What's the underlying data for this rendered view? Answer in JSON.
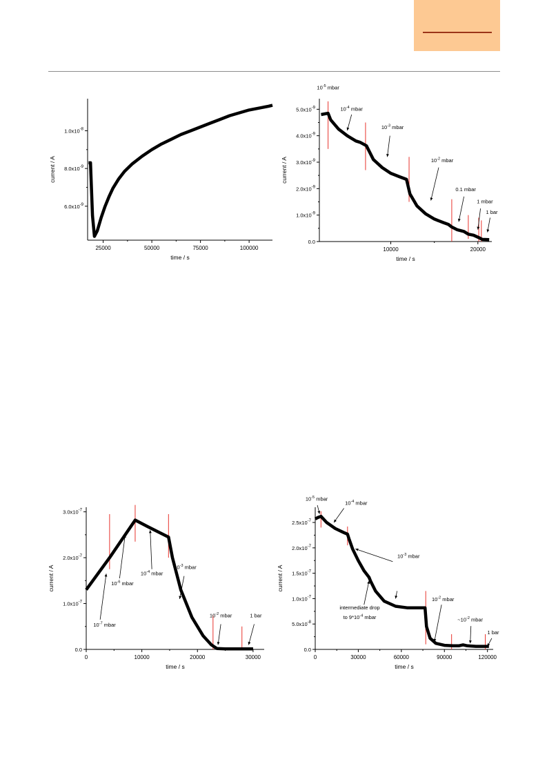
{
  "page": {
    "header_box_color": "#FDC993",
    "header_line_color": "#9A3418",
    "rule_color": "#8C8C8C"
  },
  "chart_data": [
    {
      "type": "line",
      "xlabel": "time / s",
      "ylabel": "current / A",
      "xlim": [
        17000,
        112000
      ],
      "ylim": [
        4.2e-09,
        1.17e-08
      ],
      "xticks": [
        25000,
        50000,
        75000,
        100000
      ],
      "xtick_labels": [
        "25000",
        "50000",
        "75000",
        "100000"
      ],
      "yticks": [
        6e-09,
        8e-09,
        1e-08
      ],
      "ytick_labels": [
        "6.0x10^-9",
        "8.0x10^-9",
        "1.0x10^-8"
      ],
      "series": [
        {
          "x": [
            17500,
            18500,
            18700,
            19500,
            20500,
            22000,
            24000,
            26000,
            28000,
            30000,
            33000,
            36000,
            40000,
            45000,
            50000,
            55000,
            60000,
            65000,
            70000,
            75000,
            80000,
            85000,
            90000,
            95000,
            100000,
            105000,
            110000,
            112000
          ],
          "y": [
            8.3e-09,
            8.3e-09,
            7.7e-09,
            5.5e-09,
            4.4e-09,
            4.7e-09,
            5.4e-09,
            6e-09,
            6.5e-09,
            6.95e-09,
            7.45e-09,
            7.85e-09,
            8.25e-09,
            8.65e-09,
            9e-09,
            9.3e-09,
            9.55e-09,
            9.8e-09,
            1e-08,
            1.02e-08,
            1.04e-08,
            1.06e-08,
            1.08e-08,
            1.095e-08,
            1.11e-08,
            1.12e-08,
            1.13e-08,
            1.135e-08
          ]
        }
      ],
      "markers": [],
      "annotations": []
    },
    {
      "type": "line",
      "xlabel": "time / s",
      "ylabel": "current / A",
      "xlim": [
        1800,
        21600
      ],
      "ylim": [
        0,
        5.4e-09
      ],
      "xticks": [
        10000,
        20000
      ],
      "xtick_labels": [
        "10000",
        "20000"
      ],
      "yticks": [
        0,
        1e-09,
        2e-09,
        3e-09,
        4e-09,
        5e-09
      ],
      "ytick_labels": [
        "0.0",
        "1.0x10^-9",
        "2.0x10^-9",
        "3.0x10^-9",
        "4.0x10^-9",
        "5.0x10^-9"
      ],
      "series": [
        {
          "x": [
            2000,
            2800,
            3100,
            4000,
            5000,
            6000,
            6500,
            7200,
            8000,
            9000,
            10000,
            11000,
            11800,
            12200,
            13000,
            14000,
            15000,
            16000,
            16600,
            17000,
            17600,
            18400,
            18900,
            19500,
            20100,
            20500,
            21300
          ],
          "y": [
            4.8e-09,
            4.85e-09,
            4.6e-09,
            4.25e-09,
            4e-09,
            3.8e-09,
            3.75e-09,
            3.62e-09,
            3.1e-09,
            2.8e-09,
            2.58e-09,
            2.45e-09,
            2.35e-09,
            1.8e-09,
            1.35e-09,
            1.05e-09,
            8.5e-10,
            7.2e-10,
            6.5e-10,
            5.5e-10,
            4.5e-10,
            3.8e-10,
            2.8e-10,
            2.4e-10,
            1.5e-10,
            8e-11,
            7e-11
          ]
        }
      ],
      "markers": [
        {
          "x": 2800,
          "y1": 3.5e-09,
          "y2": 5.3e-09
        },
        {
          "x": 7100,
          "y1": 2.7e-09,
          "y2": 4.5e-09
        },
        {
          "x": 12100,
          "y1": 1.5e-09,
          "y2": 3.2e-09
        },
        {
          "x": 17000,
          "y1": 0,
          "y2": 1.6e-09
        },
        {
          "x": 18900,
          "y1": 1e-10,
          "y2": 1e-09
        },
        {
          "x": 20100,
          "y1": 0,
          "y2": 9e-10
        },
        {
          "x": 20400,
          "y1": 0,
          "y2": 8e-10
        }
      ],
      "annotations": [
        {
          "base": "10",
          "exp": "-5",
          "rest": " mbar",
          "x": 2800,
          "y": 5.75e-09,
          "anchor": "middle"
        },
        {
          "base": "10",
          "exp": "-4",
          "rest": " mbar",
          "x": 5500,
          "y": 4.95e-09,
          "anchor": "middle"
        },
        {
          "base": "10",
          "exp": "-3",
          "rest": " mbar",
          "x": 10200,
          "y": 4.25e-09,
          "anchor": "middle"
        },
        {
          "base": "10",
          "exp": "-2",
          "rest": " mbar",
          "x": 15900,
          "y": 3e-09,
          "anchor": "middle"
        },
        {
          "base": "0.1 mbar",
          "exp": "",
          "rest": "",
          "x": 18600,
          "y": 1.9e-09,
          "anchor": "middle"
        },
        {
          "base": "1 mbar",
          "exp": "",
          "rest": "",
          "x": 20800,
          "y": 1.45e-09,
          "anchor": "middle"
        },
        {
          "base": "1 bar",
          "exp": "",
          "rest": "",
          "x": 21600,
          "y": 1.05e-09,
          "anchor": "middle"
        }
      ],
      "arrows": [
        {
          "x1": 5500,
          "y1": 4.8e-09,
          "x2": 5000,
          "y2": 4.2e-09
        },
        {
          "x1": 9900,
          "y1": 4e-09,
          "x2": 9600,
          "y2": 3.2e-09
        },
        {
          "x1": 15500,
          "y1": 2.8e-09,
          "x2": 14600,
          "y2": 1.55e-09
        },
        {
          "x1": 18400,
          "y1": 1.7e-09,
          "x2": 17800,
          "y2": 7.5e-10
        },
        {
          "x1": 20300,
          "y1": 1.25e-09,
          "x2": 20000,
          "y2": 4.5e-10
        },
        {
          "x1": 21400,
          "y1": 9e-10,
          "x2": 21100,
          "y2": 3.5e-10
        }
      ]
    },
    {
      "type": "line",
      "xlabel": "time / s",
      "ylabel": "current / A",
      "xlim": [
        0,
        32000
      ],
      "ylim": [
        0,
        3.1e-07
      ],
      "xticks": [
        0,
        10000,
        20000,
        30000
      ],
      "xtick_labels": [
        "0",
        "10000",
        "20000",
        "30000"
      ],
      "yticks": [
        0,
        1e-07,
        2e-07,
        3e-07
      ],
      "ytick_labels": [
        "0.0",
        "1.0x10^-7",
        "2.0x10^-7",
        "3.0x10^-7"
      ],
      "series": [
        {
          "x": [
            0,
            4200,
            8800,
            11000,
            14800,
            15500,
            17000,
            19000,
            21000,
            22500,
            23500,
            25000,
            28000,
            30000
          ],
          "y": [
            1.3e-07,
            2e-07,
            2.82e-07,
            2.68e-07,
            2.45e-07,
            2e-07,
            1.3e-07,
            7e-08,
            3e-08,
            1e-08,
            2e-09,
            1e-09,
            1e-09,
            1e-09
          ]
        }
      ],
      "markers": [
        {
          "x": 4200,
          "y1": 1.75e-07,
          "y2": 2.95e-07
        },
        {
          "x": 8800,
          "y1": 2.35e-07,
          "y2": 3.15e-07
        },
        {
          "x": 14800,
          "y1": 2e-07,
          "y2": 2.95e-07
        },
        {
          "x": 22800,
          "y1": 0,
          "y2": 7.5e-08
        },
        {
          "x": 28000,
          "y1": 0,
          "y2": 5e-08
        }
      ],
      "annotations": [
        {
          "base": "10",
          "exp": "-7",
          "rest": " mbar",
          "x": 3300,
          "y": 5e-08,
          "anchor": "middle"
        },
        {
          "base": "10",
          "exp": "-6",
          "rest": " mbar",
          "x": 6500,
          "y": 1.4e-07,
          "anchor": "middle"
        },
        {
          "base": "10",
          "exp": "-4",
          "rest": " mbar",
          "x": 11800,
          "y": 1.62e-07,
          "anchor": "middle"
        },
        {
          "base": "10",
          "exp": "-3",
          "rest": " mbar",
          "x": 17800,
          "y": 1.75e-07,
          "anchor": "middle"
        },
        {
          "base": "10",
          "exp": "-2",
          "rest": " mbar",
          "x": 24200,
          "y": 7e-08,
          "anchor": "middle"
        },
        {
          "base": "1 bar",
          "exp": "",
          "rest": "",
          "x": 30500,
          "y": 7e-08,
          "anchor": "middle"
        }
      ],
      "arrows": [
        {
          "x1": 2500,
          "y1": 6.5e-08,
          "x2": 3600,
          "y2": 1.65e-07
        },
        {
          "x1": 6000,
          "y1": 1.55e-07,
          "x2": 7000,
          "y2": 2.5e-07
        },
        {
          "x1": 11800,
          "y1": 1.75e-07,
          "x2": 11500,
          "y2": 2.6e-07
        },
        {
          "x1": 17600,
          "y1": 1.6e-07,
          "x2": 16800,
          "y2": 1.1e-07
        },
        {
          "x1": 24200,
          "y1": 5.5e-08,
          "x2": 23700,
          "y2": 1e-08
        },
        {
          "x1": 30200,
          "y1": 5.5e-08,
          "x2": 29200,
          "y2": 1e-08
        }
      ]
    },
    {
      "type": "line",
      "xlabel": "time / s",
      "ylabel": "current / A",
      "xlim": [
        0,
        124000
      ],
      "ylim": [
        0,
        2.8e-07
      ],
      "xticks": [
        0,
        30000,
        60000,
        90000,
        120000
      ],
      "xtick_labels": [
        "0",
        "30000",
        "60000",
        "90000",
        "120000"
      ],
      "yticks": [
        0,
        5e-08,
        1e-07,
        1.5e-07,
        2e-07,
        2.5e-07
      ],
      "ytick_labels": [
        "0.0",
        "5.0x10^-8",
        "1.0x10^-7",
        "1.5x10^-7",
        "2.0x10^-7",
        "2.5x10^-7"
      ],
      "series": [
        {
          "x": [
            0,
            2000,
            4000,
            8000,
            14000,
            20000,
            22500,
            23500,
            26000,
            30000,
            34000,
            37500,
            38500,
            42000,
            48000,
            56000,
            64000,
            72000,
            76500,
            77500,
            80000,
            84000,
            90000,
            96000,
            100000,
            103000,
            106000,
            112000,
            118000,
            121000
          ],
          "y": [
            2.57e-07,
            2.6e-07,
            2.62e-07,
            2.5e-07,
            2.38e-07,
            2.3e-07,
            2.27e-07,
            2.18e-07,
            1.98e-07,
            1.75e-07,
            1.55e-07,
            1.42e-07,
            1.35e-07,
            1.15e-07,
            9.5e-08,
            8.5e-08,
            8.2e-08,
            8.2e-08,
            8.2e-08,
            4.5e-08,
            2.2e-08,
            1.2e-08,
            8e-09,
            7e-09,
            7e-09,
            9e-09,
            7e-09,
            6e-09,
            6e-09,
            6e-09
          ]
        }
      ],
      "markers": [
        {
          "x": 4000,
          "y1": 2.4e-07,
          "y2": 2.72e-07
        },
        {
          "x": 22500,
          "y1": 2.05e-07,
          "y2": 2.42e-07
        },
        {
          "x": 77000,
          "y1": 1e-08,
          "y2": 1.15e-07
        },
        {
          "x": 95000,
          "y1": 0,
          "y2": 3e-08
        },
        {
          "x": 118500,
          "y1": 0,
          "y2": 3e-08
        }
      ],
      "annotations": [
        {
          "base": "10",
          "exp": "-5",
          "rest": " mbar",
          "x": 1000,
          "y": 2.93e-07,
          "anchor": "middle"
        },
        {
          "base": "10",
          "exp": "-4",
          "rest": " mbar",
          "x": 28500,
          "y": 2.85e-07,
          "anchor": "middle"
        },
        {
          "base": "10",
          "exp": "-3",
          "rest": " mbar",
          "x": 65000,
          "y": 1.8e-07,
          "anchor": "middle"
        },
        {
          "base": "intermediate drop",
          "exp": "",
          "rest": "",
          "x": 31000,
          "y": 7.9e-08,
          "anchor": "middle"
        },
        {
          "base": "to 9*10",
          "exp": "-4",
          "rest": " mbar",
          "x": 31000,
          "y": 6e-08,
          "anchor": "middle"
        },
        {
          "base": "10",
          "exp": "-2",
          "rest": " mbar",
          "x": 89000,
          "y": 9.5e-08,
          "anchor": "middle"
        },
        {
          "base": "~10",
          "exp": "-2",
          "rest": " mbar",
          "x": 108000,
          "y": 5.5e-08,
          "anchor": "middle"
        },
        {
          "base": "1 bar",
          "exp": "",
          "rest": "",
          "x": 124000,
          "y": 3e-08,
          "anchor": "middle"
        }
      ],
      "arrows": [
        {
          "x1": 1500,
          "y1": 2.84e-07,
          "x2": 3000,
          "y2": 2.67e-07
        },
        {
          "x1": 20000,
          "y1": 2.78e-07,
          "x2": 13000,
          "y2": 2.5e-07
        },
        {
          "x1": 54000,
          "y1": 1.73e-07,
          "x2": 28000,
          "y2": 1.98e-07
        },
        {
          "x1": 34000,
          "y1": 8.8e-08,
          "x2": 37500,
          "y2": 1.35e-07
        },
        {
          "x1": 57000,
          "y1": 1.15e-07,
          "x2": 56000,
          "y2": 1e-07
        },
        {
          "x1": 88000,
          "y1": 8.8e-08,
          "x2": 83000,
          "y2": 1.5e-08
        },
        {
          "x1": 108500,
          "y1": 4.6e-08,
          "x2": 108000,
          "y2": 1.2e-08
        },
        {
          "x1": 123000,
          "y1": 2.2e-08,
          "x2": 120000,
          "y2": 6e-09
        }
      ]
    }
  ]
}
